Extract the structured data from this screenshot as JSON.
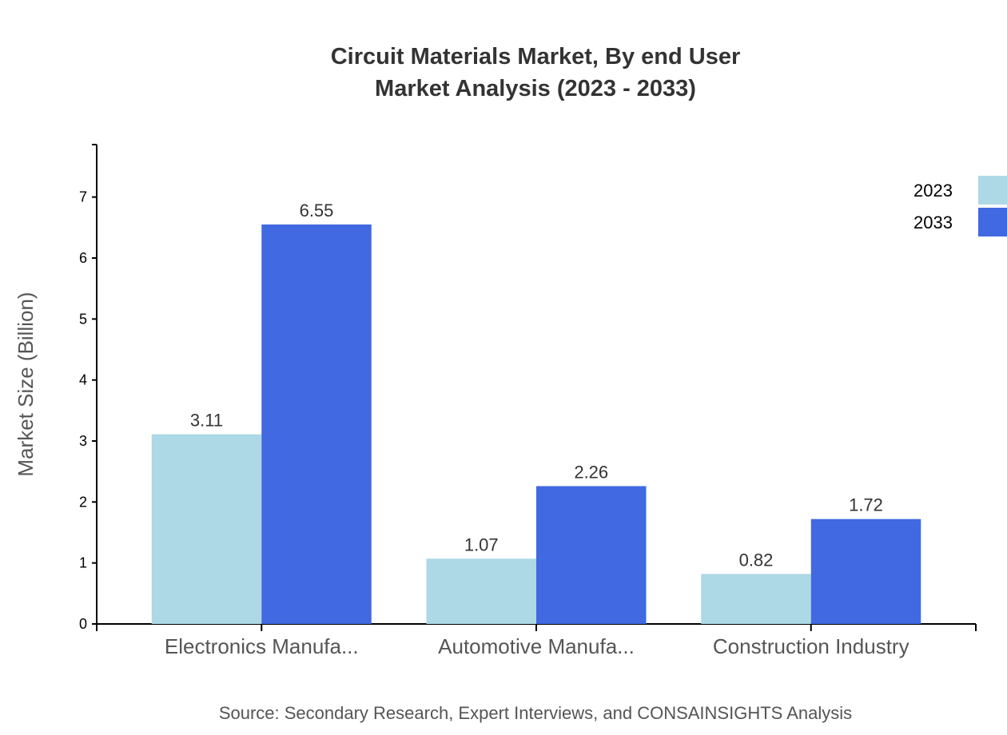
{
  "chart_data": {
    "type": "bar",
    "title": [
      "Circuit Materials Market, By end User",
      "Market Analysis (2023 - 2033)"
    ],
    "ylabel": "Market Size (Billion)",
    "xlabel": "",
    "categories": [
      "Electronics Manufa...",
      "Automotive Manufa...",
      "Construction Industry"
    ],
    "series": [
      {
        "name": "2023",
        "color": "#ADD8E6",
        "values": [
          3.11,
          1.07,
          0.82
        ]
      },
      {
        "name": "2033",
        "color": "#4169E1",
        "values": [
          6.55,
          2.26,
          1.72
        ]
      }
    ],
    "ylim": [
      0,
      7.86
    ],
    "yticks": [
      0,
      1,
      2,
      3,
      4,
      5,
      6,
      7
    ],
    "grid": false,
    "legend": "top-right",
    "source": "Source: Secondary Research, Expert Interviews, and CONSAINSIGHTS Analysis"
  }
}
